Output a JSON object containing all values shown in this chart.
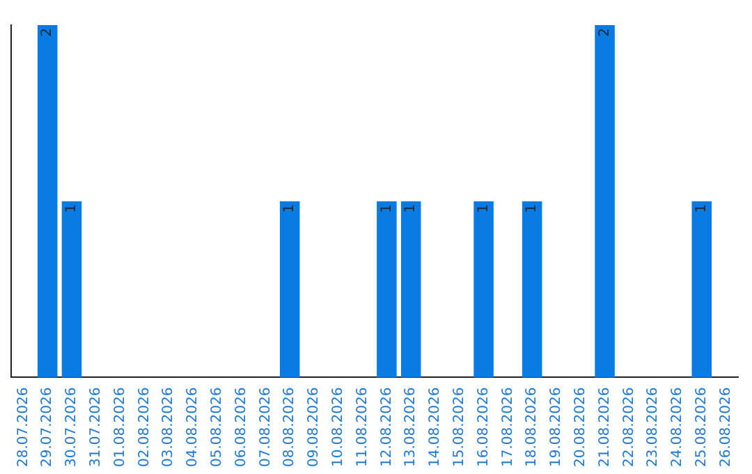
{
  "chart_data": {
    "type": "bar",
    "categories": [
      "28.07.2026",
      "29.07.2026",
      "30.07.2026",
      "31.07.2026",
      "01.08.2026",
      "02.08.2026",
      "03.08.2026",
      "04.08.2026",
      "05.08.2026",
      "06.08.2026",
      "07.08.2026",
      "08.08.2026",
      "09.08.2026",
      "10.08.2026",
      "11.08.2026",
      "12.08.2026",
      "13.08.2026",
      "14.08.2026",
      "15.08.2026",
      "16.08.2026",
      "17.08.2026",
      "18.08.2026",
      "19.08.2026",
      "20.08.2026",
      "21.08.2026",
      "22.08.2026",
      "23.08.2026",
      "24.08.2026",
      "25.08.2026",
      "26.08.2026"
    ],
    "values": [
      0,
      2,
      1,
      0,
      0,
      0,
      0,
      0,
      0,
      0,
      0,
      1,
      0,
      0,
      0,
      1,
      1,
      0,
      0,
      1,
      0,
      1,
      0,
      0,
      2,
      0,
      0,
      0,
      1,
      0
    ],
    "value_labels": [
      null,
      "2",
      "1",
      null,
      null,
      null,
      null,
      null,
      null,
      null,
      null,
      "1",
      null,
      null,
      null,
      "1",
      "1",
      null,
      null,
      "1",
      null,
      "1",
      null,
      null,
      "2",
      null,
      null,
      null,
      "1",
      null
    ],
    "color": "#0a7be3",
    "ylim": [
      0,
      2
    ],
    "tick_labels": "x",
    "grid": false,
    "legend": false
  }
}
